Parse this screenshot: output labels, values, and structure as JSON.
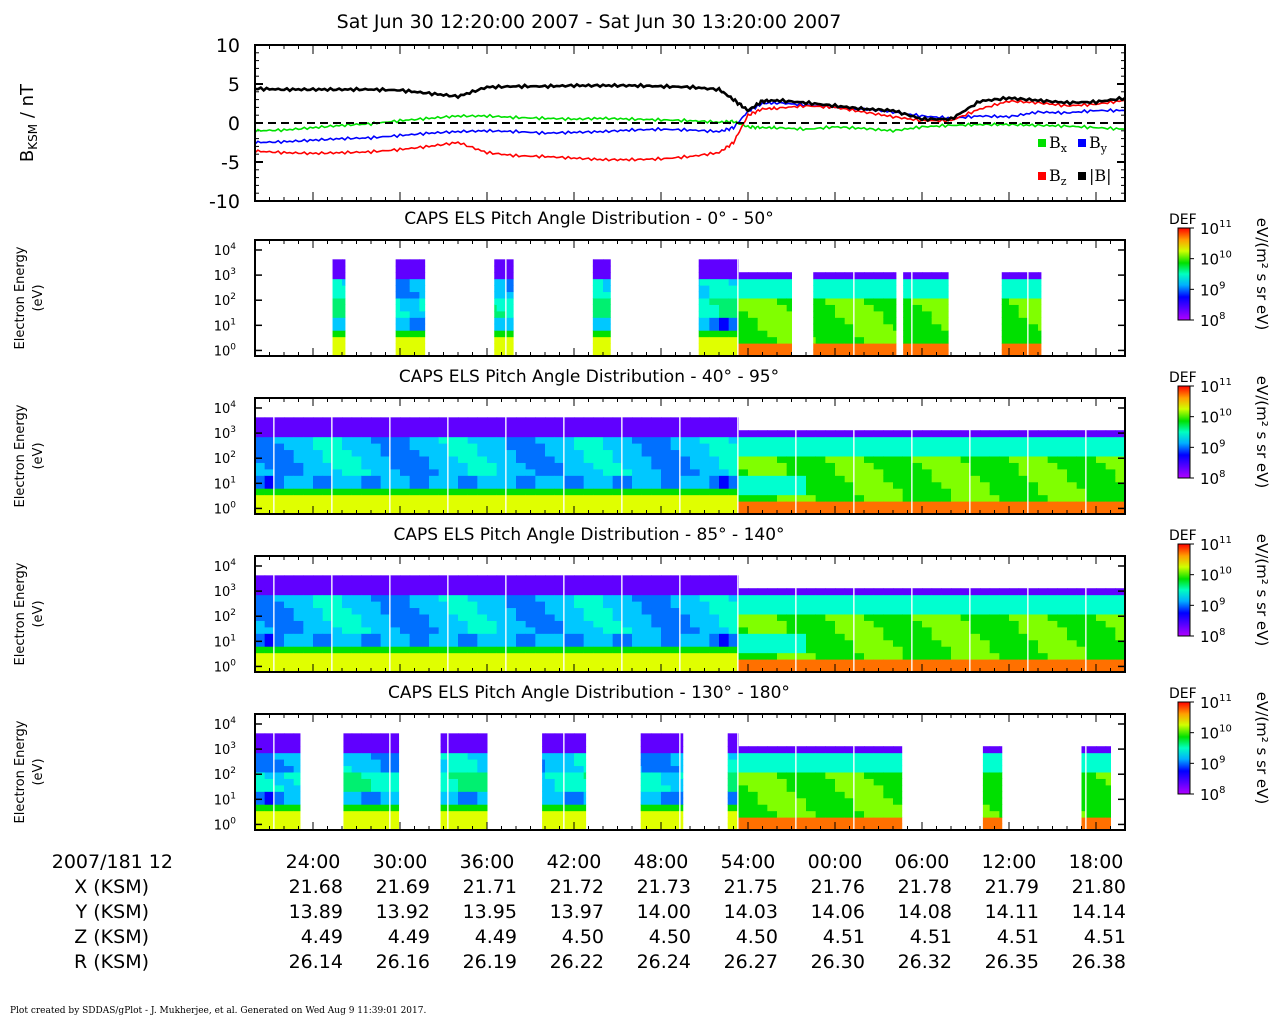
{
  "header": {
    "time_range": "Sat Jun 30 12:20:00 2007 - Sat Jun 30 13:20:00 2007"
  },
  "mag_panel": {
    "ylabel_main": "B",
    "ylabel_sub": "KSM",
    "ylabel_unit": " / nT",
    "yticks": [
      "10",
      "5",
      "0",
      "-5",
      "-10"
    ],
    "legend": [
      {
        "label": "B",
        "sub": "x",
        "color": "#00e000"
      },
      {
        "label": "B",
        "sub": "y",
        "color": "#0000ff"
      },
      {
        "label": "B",
        "sub": "z",
        "color": "#ff0000"
      },
      {
        "label": "|B|",
        "sub": "",
        "color": "#000000"
      }
    ]
  },
  "spec_common": {
    "ylabel_line1": "Electron Energy",
    "ylabel_line2": "(eV)",
    "ytick_base": "10",
    "ytick_exps": [
      "4",
      "3",
      "2",
      "1",
      "0"
    ],
    "cbar_title": "DEF",
    "cbar_unit": "eV/(m² s sr eV)",
    "cbar_exps": [
      "11",
      "10",
      "9",
      "8"
    ]
  },
  "spectrograms": [
    {
      "title": "CAPS ELS Pitch Angle Distribution - 0° - 50°"
    },
    {
      "title": "CAPS ELS Pitch Angle Distribution - 40° - 95°"
    },
    {
      "title": "CAPS ELS Pitch Angle Distribution - 85° - 140°"
    },
    {
      "title": "CAPS ELS Pitch Angle Distribution - 130° - 180°"
    }
  ],
  "time_axis": {
    "date_label": "2007/181 12",
    "ticks": [
      "24:00",
      "30:00",
      "36:00",
      "42:00",
      "48:00",
      "54:00",
      "00:00",
      "06:00",
      "12:00",
      "18:00"
    ],
    "ephemeris": [
      {
        "label": "X (KSM)",
        "values": [
          "21.68",
          "21.69",
          "21.71",
          "21.72",
          "21.73",
          "21.75",
          "21.76",
          "21.78",
          "21.79",
          "21.80"
        ]
      },
      {
        "label": "Y (KSM)",
        "values": [
          "13.89",
          "13.92",
          "13.95",
          "13.97",
          "14.00",
          "14.03",
          "14.06",
          "14.08",
          "14.11",
          "14.14"
        ]
      },
      {
        "label": "Z (KSM)",
        "values": [
          "4.49",
          "4.49",
          "4.49",
          "4.50",
          "4.50",
          "4.50",
          "4.51",
          "4.51",
          "4.51",
          "4.51"
        ]
      },
      {
        "label": "R (KSM)",
        "values": [
          "26.14",
          "26.16",
          "26.19",
          "26.22",
          "26.24",
          "26.27",
          "26.30",
          "26.32",
          "26.35",
          "26.38"
        ]
      }
    ]
  },
  "footer": {
    "text": "Plot created by SDDAS/gPlot - J. Mukherjee, et al.  Generated on Wed Aug 9 11:39:01 2017."
  },
  "chart_data": [
    {
      "type": "line",
      "title": "Sat Jun 30 12:20:00 2007 - Sat Jun 30 13:20:00 2007",
      "ylabel": "BKSM / nT",
      "ylim": [
        -10,
        10
      ],
      "x": [
        20,
        22,
        24,
        26,
        28,
        30,
        32,
        34,
        36,
        38,
        40,
        42,
        44,
        46,
        48,
        50,
        52,
        53,
        54,
        55,
        56,
        58,
        60,
        62,
        64,
        66,
        68,
        70,
        72,
        74,
        76,
        78,
        80
      ],
      "series": [
        {
          "name": "Bx",
          "color": "#00e000",
          "values": [
            -1.0,
            -0.9,
            -0.6,
            -0.3,
            -0.1,
            0.3,
            0.6,
            0.9,
            0.9,
            0.7,
            0.6,
            0.5,
            0.6,
            0.5,
            0.4,
            0.3,
            0.1,
            0.2,
            -0.5,
            -0.6,
            -0.6,
            -0.8,
            -0.5,
            -0.7,
            -1.0,
            -0.5,
            -0.3,
            -0.2,
            -0.2,
            -0.3,
            -0.4,
            -0.6,
            -0.8
          ]
        },
        {
          "name": "By",
          "color": "#0000ff",
          "values": [
            -2.5,
            -2.4,
            -2.2,
            -2.0,
            -1.9,
            -1.6,
            -1.3,
            -1.1,
            -1.0,
            -1.1,
            -1.3,
            -1.2,
            -1.1,
            -0.9,
            -0.8,
            -0.9,
            -1.1,
            -0.6,
            1.5,
            2.5,
            2.6,
            2.3,
            2.0,
            1.8,
            1.4,
            0.9,
            0.6,
            0.9,
            0.8,
            1.4,
            1.3,
            1.6,
            1.6
          ]
        },
        {
          "name": "Bz",
          "color": "#ff0000",
          "values": [
            -3.6,
            -3.8,
            -3.9,
            -3.8,
            -3.7,
            -3.4,
            -3.0,
            -2.5,
            -3.8,
            -4.2,
            -4.3,
            -4.5,
            -4.7,
            -4.7,
            -4.6,
            -4.3,
            -3.8,
            -2.5,
            1.0,
            1.8,
            1.9,
            2.2,
            2.0,
            1.4,
            0.8,
            0.3,
            0.3,
            1.8,
            2.8,
            2.6,
            2.2,
            2.4,
            2.9
          ]
        },
        {
          "name": "|B|",
          "color": "#000000",
          "values": [
            4.4,
            4.3,
            4.3,
            4.3,
            4.3,
            4.2,
            3.8,
            3.4,
            4.6,
            4.7,
            4.7,
            4.8,
            4.8,
            4.8,
            4.7,
            4.6,
            4.3,
            3.0,
            1.6,
            2.8,
            2.9,
            2.6,
            2.2,
            1.8,
            1.6,
            0.5,
            0.5,
            2.8,
            3.2,
            2.9,
            2.6,
            2.7,
            3.2
          ]
        }
      ]
    },
    {
      "type": "heatmap",
      "title": "CAPS ELS Pitch Angle Distribution - 0° - 50°",
      "ylabel": "Electron Energy (eV)",
      "yscale": "log",
      "ylim": [
        0.6,
        25000
      ],
      "colorbar": {
        "label": "DEF eV/(m² s sr eV)",
        "scale": "log",
        "range": [
          100000000.0,
          100000000000.0
        ]
      },
      "coverage_minutes": [
        [
          25.3,
          26.2
        ],
        [
          29.7,
          31.7
        ],
        [
          36.5,
          37.8
        ],
        [
          43.3,
          44.5
        ],
        [
          50.6,
          57.0
        ],
        [
          58.5,
          64.2
        ],
        [
          64.7,
          67.8
        ],
        [
          71.5,
          74.2
        ]
      ]
    },
    {
      "type": "heatmap",
      "title": "CAPS ELS Pitch Angle Distribution - 40° - 95°",
      "ylabel": "Electron Energy (eV)",
      "yscale": "log",
      "ylim": [
        0.6,
        25000
      ],
      "colorbar": {
        "label": "DEF eV/(m² s sr eV)",
        "scale": "log",
        "range": [
          100000000.0,
          100000000000.0
        ]
      },
      "coverage_minutes": [
        [
          20.0,
          80.0
        ]
      ]
    },
    {
      "type": "heatmap",
      "title": "CAPS ELS Pitch Angle Distribution - 85° - 140°",
      "ylabel": "Electron Energy (eV)",
      "yscale": "log",
      "ylim": [
        0.6,
        25000
      ],
      "colorbar": {
        "label": "DEF eV/(m² s sr eV)",
        "scale": "log",
        "range": [
          100000000.0,
          100000000000.0
        ]
      },
      "coverage_minutes": [
        [
          20.0,
          80.0
        ]
      ]
    },
    {
      "type": "heatmap",
      "title": "CAPS ELS Pitch Angle Distribution - 130° - 180°",
      "ylabel": "Electron Energy (eV)",
      "yscale": "log",
      "ylim": [
        0.6,
        25000
      ],
      "colorbar": {
        "label": "DEF eV/(m² s sr eV)",
        "scale": "log",
        "range": [
          100000000.0,
          100000000000.0
        ]
      },
      "coverage_minutes": [
        [
          20.0,
          23.1
        ],
        [
          26.1,
          29.9
        ],
        [
          32.8,
          36.0
        ],
        [
          39.8,
          42.8
        ],
        [
          46.6,
          49.5
        ],
        [
          52.6,
          64.6
        ],
        [
          70.2,
          71.5
        ],
        [
          77.0,
          79.0
        ]
      ]
    }
  ]
}
